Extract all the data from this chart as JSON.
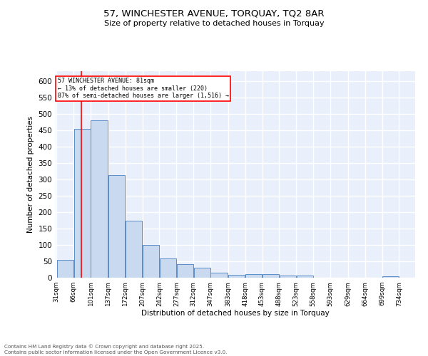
{
  "title": "57, WINCHESTER AVENUE, TORQUAY, TQ2 8AR",
  "subtitle": "Size of property relative to detached houses in Torquay",
  "xlabel": "Distribution of detached houses by size in Torquay",
  "ylabel": "Number of detached properties",
  "bins": [
    31,
    66,
    101,
    137,
    172,
    207,
    242,
    277,
    312,
    347,
    383,
    418,
    453,
    488,
    523,
    558,
    593,
    629,
    664,
    699,
    734
  ],
  "counts": [
    55,
    455,
    480,
    312,
    174,
    101,
    59,
    42,
    30,
    15,
    8,
    10,
    10,
    6,
    6,
    0,
    1,
    0,
    0,
    4
  ],
  "bar_color": "#c9d9f0",
  "bar_edge_color": "#5b8dc8",
  "reference_line_x": 81,
  "reference_line_color": "red",
  "annotation_text": "57 WINCHESTER AVENUE: 81sqm\n← 13% of detached houses are smaller (220)\n87% of semi-detached houses are larger (1,516) →",
  "annotation_box_color": "white",
  "annotation_box_edge_color": "red",
  "ylim": [
    0,
    630
  ],
  "yticks": [
    0,
    50,
    100,
    150,
    200,
    250,
    300,
    350,
    400,
    450,
    500,
    550,
    600
  ],
  "bg_color": "#eaf0fb",
  "grid_color": "white",
  "footer_text": "Contains HM Land Registry data © Crown copyright and database right 2025.\nContains public sector information licensed under the Open Government Licence v3.0.",
  "tick_labels": [
    "31sqm",
    "66sqm",
    "101sqm",
    "137sqm",
    "172sqm",
    "207sqm",
    "242sqm",
    "277sqm",
    "312sqm",
    "347sqm",
    "383sqm",
    "418sqm",
    "453sqm",
    "488sqm",
    "523sqm",
    "558sqm",
    "593sqm",
    "629sqm",
    "664sqm",
    "699sqm",
    "734sqm"
  ]
}
